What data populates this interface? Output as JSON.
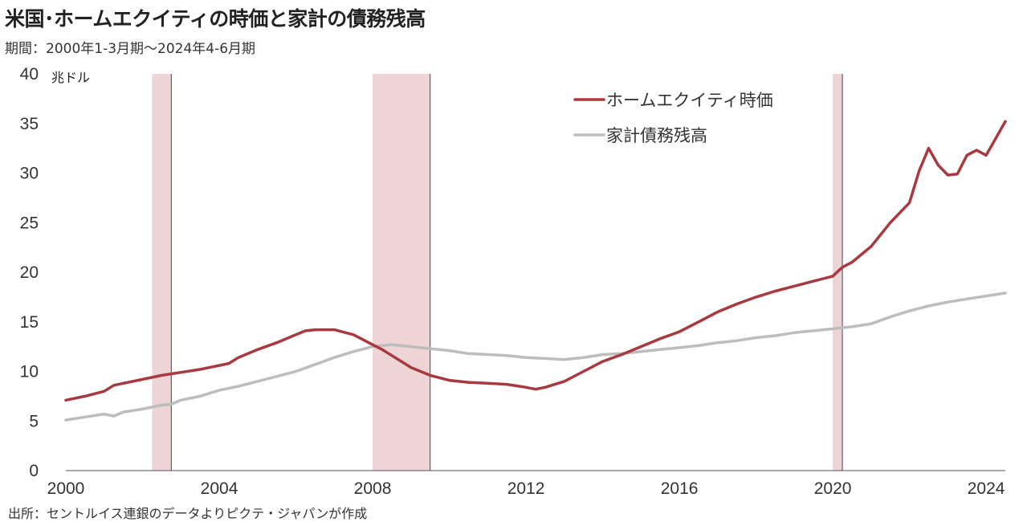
{
  "title": "米国･ホームエクイティの時価と家計の債務残高",
  "subtitle": "期間：2000年1-3月期～2024年4-6月期",
  "source": "出所：セントルイス連銀のデータよりピクテ・ジャパンが作成",
  "chart_data": {
    "type": "line",
    "unit_label": "兆ドル",
    "ylim": [
      0,
      40
    ],
    "xlim": [
      2000,
      2024.5
    ],
    "yticks": [
      "0",
      "5",
      "10",
      "15",
      "20",
      "25",
      "30",
      "35",
      "40"
    ],
    "xticks": [
      "2000",
      "2004",
      "2008",
      "2012",
      "2016",
      "2020",
      "2024"
    ],
    "legend_position": "top-right",
    "shaded_periods": [
      [
        2002.25,
        2002.75
      ],
      [
        2008.0,
        2009.5
      ],
      [
        2020.0,
        2020.25
      ]
    ],
    "series": [
      {
        "name": "ホームエクイティ時価",
        "color": "#a83a3f",
        "points": [
          [
            2000.0,
            7.1
          ],
          [
            2000.5,
            7.5
          ],
          [
            2001.0,
            8.0
          ],
          [
            2001.25,
            8.6
          ],
          [
            2001.5,
            8.8
          ],
          [
            2002.0,
            9.2
          ],
          [
            2002.5,
            9.6
          ],
          [
            2003.0,
            9.9
          ],
          [
            2003.5,
            10.2
          ],
          [
            2004.0,
            10.6
          ],
          [
            2004.25,
            10.8
          ],
          [
            2004.5,
            11.4
          ],
          [
            2005.0,
            12.2
          ],
          [
            2005.5,
            12.9
          ],
          [
            2006.0,
            13.7
          ],
          [
            2006.25,
            14.1
          ],
          [
            2006.5,
            14.2
          ],
          [
            2007.0,
            14.2
          ],
          [
            2007.5,
            13.7
          ],
          [
            2008.0,
            12.7
          ],
          [
            2008.25,
            12.2
          ],
          [
            2008.5,
            11.6
          ],
          [
            2009.0,
            10.4
          ],
          [
            2009.5,
            9.6
          ],
          [
            2010.0,
            9.1
          ],
          [
            2010.5,
            8.9
          ],
          [
            2011.0,
            8.8
          ],
          [
            2011.5,
            8.7
          ],
          [
            2012.0,
            8.4
          ],
          [
            2012.25,
            8.2
          ],
          [
            2012.5,
            8.4
          ],
          [
            2013.0,
            9.0
          ],
          [
            2013.5,
            10.0
          ],
          [
            2014.0,
            11.0
          ],
          [
            2014.5,
            11.7
          ],
          [
            2015.0,
            12.5
          ],
          [
            2015.5,
            13.3
          ],
          [
            2016.0,
            14.0
          ],
          [
            2016.5,
            15.0
          ],
          [
            2017.0,
            16.0
          ],
          [
            2017.5,
            16.8
          ],
          [
            2018.0,
            17.5
          ],
          [
            2018.5,
            18.1
          ],
          [
            2019.0,
            18.6
          ],
          [
            2019.5,
            19.1
          ],
          [
            2020.0,
            19.6
          ],
          [
            2020.25,
            20.5
          ],
          [
            2020.5,
            21.0
          ],
          [
            2021.0,
            22.6
          ],
          [
            2021.5,
            25.0
          ],
          [
            2022.0,
            27.0
          ],
          [
            2022.25,
            30.2
          ],
          [
            2022.5,
            32.5
          ],
          [
            2022.75,
            30.8
          ],
          [
            2023.0,
            29.8
          ],
          [
            2023.25,
            29.9
          ],
          [
            2023.5,
            31.8
          ],
          [
            2023.75,
            32.3
          ],
          [
            2024.0,
            31.8
          ],
          [
            2024.25,
            33.5
          ],
          [
            2024.5,
            35.2
          ]
        ]
      },
      {
        "name": "家計債務残高",
        "color": "#bdbdbd",
        "points": [
          [
            2000.0,
            5.1
          ],
          [
            2000.5,
            5.4
          ],
          [
            2001.0,
            5.7
          ],
          [
            2001.25,
            5.5
          ],
          [
            2001.5,
            5.9
          ],
          [
            2002.0,
            6.2
          ],
          [
            2002.5,
            6.6
          ],
          [
            2002.75,
            6.7
          ],
          [
            2003.0,
            7.1
          ],
          [
            2003.5,
            7.5
          ],
          [
            2004.0,
            8.1
          ],
          [
            2004.5,
            8.5
          ],
          [
            2005.0,
            9.0
          ],
          [
            2005.5,
            9.5
          ],
          [
            2006.0,
            10.0
          ],
          [
            2006.5,
            10.7
          ],
          [
            2007.0,
            11.4
          ],
          [
            2007.5,
            12.0
          ],
          [
            2008.0,
            12.5
          ],
          [
            2008.5,
            12.7
          ],
          [
            2009.0,
            12.5
          ],
          [
            2009.5,
            12.3
          ],
          [
            2010.0,
            12.1
          ],
          [
            2010.5,
            11.8
          ],
          [
            2011.0,
            11.7
          ],
          [
            2011.5,
            11.6
          ],
          [
            2012.0,
            11.4
          ],
          [
            2012.5,
            11.3
          ],
          [
            2013.0,
            11.2
          ],
          [
            2013.5,
            11.4
          ],
          [
            2014.0,
            11.7
          ],
          [
            2014.5,
            11.8
          ],
          [
            2015.0,
            12.0
          ],
          [
            2015.5,
            12.2
          ],
          [
            2016.0,
            12.4
          ],
          [
            2016.5,
            12.6
          ],
          [
            2017.0,
            12.9
          ],
          [
            2017.5,
            13.1
          ],
          [
            2018.0,
            13.4
          ],
          [
            2018.5,
            13.6
          ],
          [
            2019.0,
            13.9
          ],
          [
            2019.5,
            14.1
          ],
          [
            2020.0,
            14.3
          ],
          [
            2020.5,
            14.5
          ],
          [
            2021.0,
            14.8
          ],
          [
            2021.5,
            15.5
          ],
          [
            2022.0,
            16.1
          ],
          [
            2022.5,
            16.6
          ],
          [
            2023.0,
            17.0
          ],
          [
            2023.5,
            17.3
          ],
          [
            2024.0,
            17.6
          ],
          [
            2024.5,
            17.9
          ]
        ]
      }
    ]
  }
}
